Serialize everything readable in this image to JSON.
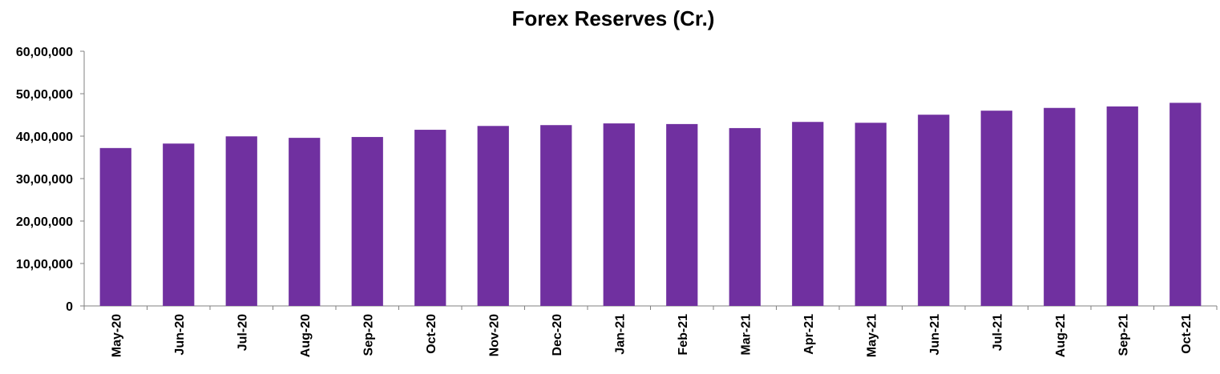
{
  "chart_data": {
    "type": "bar",
    "title": "Forex Reserves (Cr.)",
    "xlabel": "",
    "ylabel": "",
    "ylim": [
      0,
      6000000
    ],
    "yticks": [
      0,
      1000000,
      2000000,
      3000000,
      4000000,
      5000000,
      6000000
    ],
    "ytick_labels": [
      "0",
      "10,00,000",
      "20,00,000",
      "30,00,000",
      "40,00,000",
      "50,00,000",
      "60,00,000"
    ],
    "grid": false,
    "legend": "none",
    "categories": [
      "May-20",
      "Jun-20",
      "Jul-20",
      "Aug-20",
      "Sep-20",
      "Oct-20",
      "Nov-20",
      "Dec-20",
      "Jan-21",
      "Feb-21",
      "Mar-21",
      "Apr-21",
      "May-21",
      "Jun-21",
      "Jul-21",
      "Aug-21",
      "Sep-21",
      "Oct-21"
    ],
    "series": [
      {
        "values": [
          3720000,
          3825000,
          3995000,
          3960000,
          3980000,
          4150000,
          4240000,
          4260000,
          4300000,
          4285000,
          4190000,
          4335000,
          4315000,
          4505000,
          4600000,
          4665000,
          4700000,
          4785000
        ],
        "color": "#7030A0"
      }
    ]
  }
}
